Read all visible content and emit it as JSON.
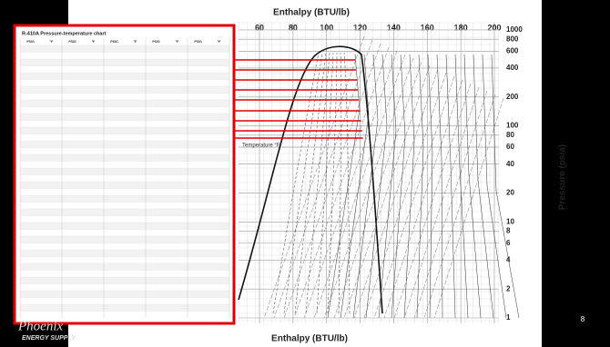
{
  "slide": {
    "page_number": "8",
    "logo": {
      "name": "Phoenix",
      "tagline": "ENERGY SUPPLY"
    }
  },
  "table": {
    "title": "R-410A Pressure-temperature chart",
    "headers": [
      "PSIG",
      "°F",
      "PSIG",
      "°F",
      "PSIG",
      "°F",
      "PSIG",
      "°F",
      "PSIG",
      "°F"
    ]
  },
  "diagram": {
    "x_label": "Enthalpy (BTU/lb)",
    "x_ticks": [
      60,
      80,
      100,
      120,
      140,
      160,
      180,
      200
    ],
    "y_label": "Pressure (psia)",
    "y_ticks": [
      1000,
      800,
      600,
      400,
      200,
      100,
      80,
      60,
      40,
      20,
      10,
      8,
      6,
      4,
      2,
      1
    ],
    "annotation": "Temperature °F"
  }
}
